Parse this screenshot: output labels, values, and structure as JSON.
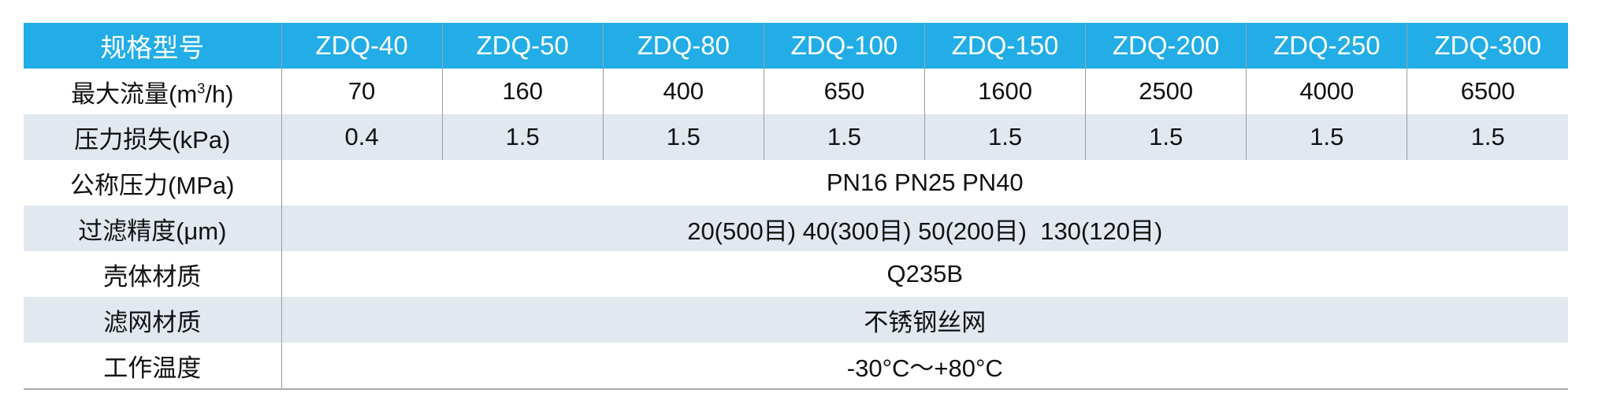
{
  "table": {
    "header": {
      "label": "规格型号",
      "models": [
        "ZDQ-40",
        "ZDQ-50",
        "ZDQ-80",
        "ZDQ-100",
        "ZDQ-150",
        "ZDQ-200",
        "ZDQ-250",
        "ZDQ-300"
      ]
    },
    "max_flow": {
      "label_prefix": "最大流量(m",
      "label_sup": "3",
      "label_suffix": "/h)",
      "values": [
        "70",
        "160",
        "400",
        "650",
        "1600",
        "2500",
        "4000",
        "6500"
      ]
    },
    "pressure_loss": {
      "label": "压力损失(kPa)",
      "values": [
        "0.4",
        "1.5",
        "1.5",
        "1.5",
        "1.5",
        "1.5",
        "1.5",
        "1.5"
      ]
    },
    "nominal_pressure": {
      "label": "公称压力(MPa)",
      "value": "PN16 PN25 PN40"
    },
    "filter_precision": {
      "label": "过滤精度(μm)",
      "value": "20(500目) 40(300目) 50(200目)  130(120目)"
    },
    "housing_material": {
      "label": "壳体材质",
      "value": "Q235B"
    },
    "mesh_material": {
      "label": "滤网材质",
      "value": "不锈钢丝网"
    },
    "working_temp": {
      "label": "工作温度",
      "value": "-30°C～+80°C"
    }
  },
  "colors": {
    "header_bg": "#22ade6",
    "alt_row_bg": "#e1e8f0"
  }
}
